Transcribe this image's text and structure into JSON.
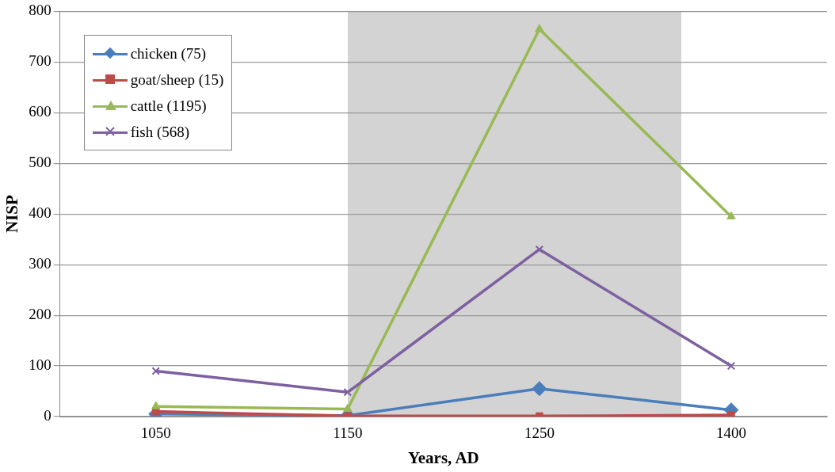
{
  "chart_data": {
    "type": "line",
    "xlabel": "Years, AD",
    "ylabel": "NISP",
    "categories": [
      "1050",
      "1150",
      "1250",
      "1400"
    ],
    "series": [
      {
        "name": "chicken (75)",
        "color": "#4a7ebb",
        "marker": "diamond",
        "values": [
          5,
          2,
          55,
          13
        ]
      },
      {
        "name": "goat/sheep (15)",
        "color": "#be4b48",
        "marker": "square",
        "values": [
          10,
          1,
          1,
          3
        ]
      },
      {
        "name": "cattle (1195)",
        "color": "#98b954",
        "marker": "triangle",
        "values": [
          20,
          15,
          765,
          395
        ]
      },
      {
        "name": "fish (568)",
        "color": "#7d60a0",
        "marker": "cross",
        "values": [
          90,
          48,
          330,
          100
        ]
      }
    ],
    "ylim": [
      0,
      800
    ],
    "yticks": [
      0,
      100,
      200,
      300,
      400,
      500,
      600,
      700,
      800
    ],
    "grid": "y",
    "legend": "top left",
    "line_style": "solid"
  }
}
